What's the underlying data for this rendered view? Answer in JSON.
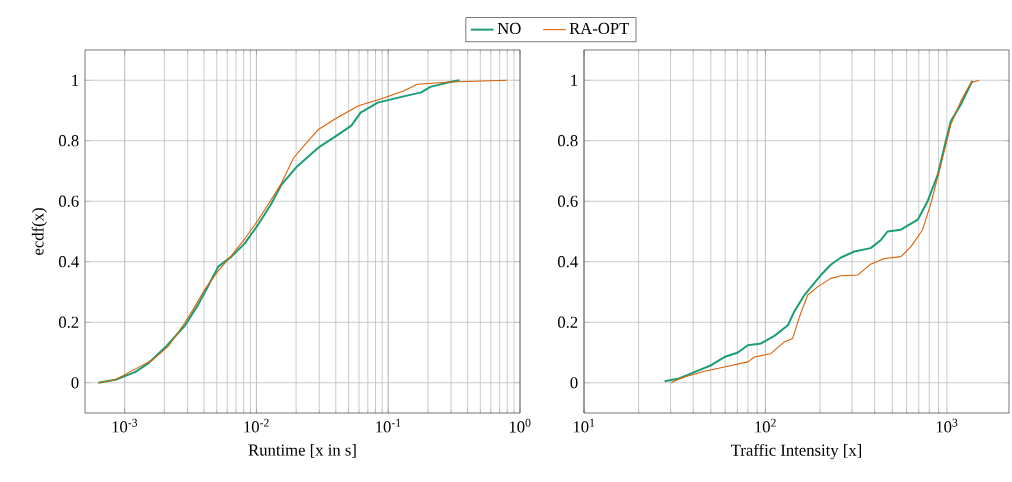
{
  "chart_data": [
    {
      "type": "line",
      "xlabel": "Runtime [x in s]",
      "ylabel": "ecdf(x)",
      "log": "x",
      "grid": true,
      "legend": "top",
      "xlim": [
        0.0005,
        1
      ],
      "ylim": [
        -0.1,
        1.1
      ],
      "xticks": [
        {
          "value": 0.001,
          "label": "10$^{-3}$"
        },
        {
          "value": 0.01,
          "label": "10$^{-2}$"
        },
        {
          "value": 0.1,
          "label": "10$^{-1}$"
        },
        {
          "value": 1,
          "label": "10$^{0}$"
        }
      ],
      "yticks": [
        0,
        0.2,
        0.4,
        0.6,
        0.8,
        1
      ],
      "series": [
        {
          "name": "NO",
          "color": "#1b9e77",
          "x": [
            0.00063,
            0.00085,
            0.0012,
            0.0015,
            0.00204,
            0.00288,
            0.00363,
            0.00407,
            0.00513,
            0.00646,
            0.00813,
            0.0102,
            0.0129,
            0.0155,
            0.0204,
            0.0295,
            0.0417,
            0.0525,
            0.0617,
            0.0832,
            0.126,
            0.178,
            0.209,
            0.295,
            0.347
          ],
          "values": [
            0,
            0.01,
            0.035,
            0.063,
            0.118,
            0.19,
            0.26,
            0.3,
            0.384,
            0.417,
            0.46,
            0.52,
            0.59,
            0.655,
            0.716,
            0.777,
            0.82,
            0.85,
            0.893,
            0.926,
            0.945,
            0.96,
            0.978,
            0.994,
            1
          ]
        },
        {
          "name": "RA-OPT",
          "color": "#d95f02",
          "x": [
            0.00063,
            0.00085,
            0.0012,
            0.00162,
            0.00214,
            0.00288,
            0.00339,
            0.00407,
            0.00513,
            0.00646,
            0.00813,
            0.0102,
            0.0123,
            0.0155,
            0.0191,
            0.0234,
            0.0295,
            0.0389,
            0.0589,
            0.0933,
            0.132,
            0.166,
            0.295,
            0.794
          ],
          "values": [
            0,
            0.01,
            0.045,
            0.075,
            0.12,
            0.2,
            0.25,
            0.31,
            0.37,
            0.42,
            0.475,
            0.535,
            0.59,
            0.66,
            0.743,
            0.788,
            0.837,
            0.87,
            0.915,
            0.942,
            0.965,
            0.987,
            0.994,
            1
          ]
        }
      ]
    },
    {
      "type": "line",
      "xlabel": "Traffic Intensity [x]",
      "log": "x",
      "grid": true,
      "xlim": [
        10,
        2200
      ],
      "ylim": [
        -0.1,
        1.1
      ],
      "xticks": [
        {
          "value": 10,
          "label": "10$^{1}$"
        },
        {
          "value": 100,
          "label": "10$^{2}$"
        },
        {
          "value": 1000,
          "label": "10$^{3}$"
        }
      ],
      "yticks": [
        0,
        0.2,
        0.4,
        0.6,
        0.8,
        1
      ],
      "series": [
        {
          "color": "#1b9e77",
          "x": [
            27.8,
            32.9,
            42.5,
            50.2,
            59.4,
            70.5,
            80,
            94.6,
            112,
            133,
            144,
            164,
            202,
            229,
            261,
            309,
            380,
            433,
            471,
            558,
            691,
            783,
            891,
            987,
            1052,
            1194,
            1381
          ],
          "values": [
            0.005,
            0.013,
            0.04,
            0.058,
            0.085,
            0.1,
            0.124,
            0.13,
            0.155,
            0.19,
            0.235,
            0.29,
            0.356,
            0.39,
            0.414,
            0.434,
            0.445,
            0.472,
            0.5,
            0.506,
            0.539,
            0.6,
            0.688,
            0.8,
            0.865,
            0.92,
            0.998
          ]
        },
        {
          "color": "#d95f02",
          "x": [
            30.2,
            33.6,
            35.8,
            46.1,
            59.4,
            80,
            87,
            107,
            127,
            141,
            155,
            171,
            194,
            229,
            261,
            322,
            380,
            452,
            558,
            634,
            735,
            817,
            927,
            1052,
            1194,
            1355,
            1507
          ],
          "values": [
            0,
            0.013,
            0.019,
            0.038,
            0.052,
            0.069,
            0.085,
            0.096,
            0.135,
            0.146,
            0.223,
            0.29,
            0.317,
            0.345,
            0.354,
            0.356,
            0.392,
            0.411,
            0.417,
            0.45,
            0.506,
            0.594,
            0.721,
            0.854,
            0.931,
            0.992,
            1
          ]
        }
      ]
    }
  ]
}
